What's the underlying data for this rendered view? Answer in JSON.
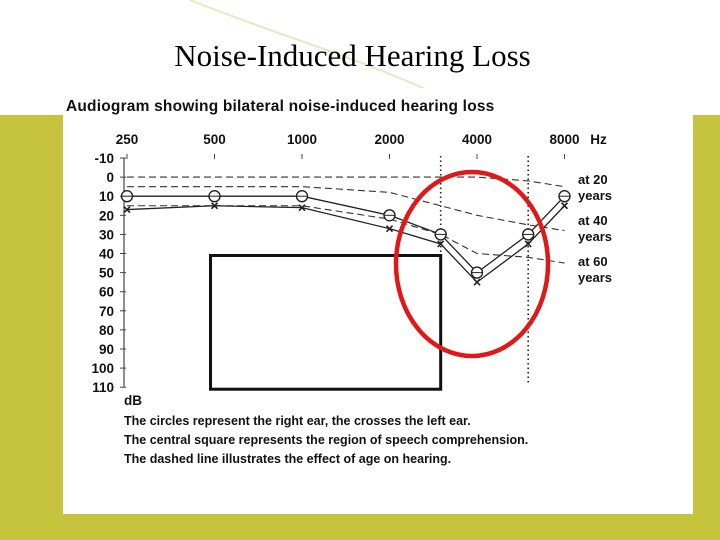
{
  "slide": {
    "title": "Noise-Induced Hearing Loss",
    "band_color": "#c6c33c"
  },
  "chart_data": {
    "type": "line",
    "title": "Audiogram showing bilateral noise-induced hearing loss",
    "x_unit": "Hz",
    "y_unit": "dB",
    "x_categories": [
      "250",
      "500",
      "1000",
      "2000",
      "4000",
      "8000"
    ],
    "y_ticks": [
      -10,
      0,
      10,
      20,
      30,
      40,
      50,
      60,
      70,
      80,
      90,
      100,
      110
    ],
    "y_inverted": true,
    "series": [
      {
        "marker": "circle",
        "x": [
          250,
          500,
          1000,
          2000,
          3000,
          4000,
          6000,
          8000
        ],
        "y": [
          10,
          10,
          10,
          20,
          30,
          50,
          30,
          10
        ]
      },
      {
        "marker": "cross",
        "x": [
          250,
          500,
          1000,
          2000,
          3000,
          4000,
          6000,
          8000
        ],
        "y": [
          17,
          15,
          16,
          27,
          35,
          55,
          35,
          15
        ]
      }
    ],
    "age_curves": [
      {
        "label": "at 20 years",
        "x": [
          250,
          500,
          1000,
          2000,
          3000,
          4000,
          6000,
          8000
        ],
        "y": [
          0,
          0,
          0,
          0,
          0,
          0,
          2,
          5
        ]
      },
      {
        "label": "at 40 years",
        "x": [
          250,
          500,
          1000,
          2000,
          3000,
          4000,
          6000,
          8000
        ],
        "y": [
          5,
          5,
          5,
          8,
          15,
          20,
          25,
          28
        ]
      },
      {
        "label": "at 60 years",
        "x": [
          250,
          500,
          1000,
          2000,
          3000,
          4000,
          6000,
          8000
        ],
        "y": [
          15,
          15,
          15,
          22,
          30,
          40,
          42,
          45
        ]
      }
    ],
    "speech_region": {
      "x": [
        500,
        3000
      ],
      "y": [
        40,
        110
      ]
    },
    "highlight_color": "#e01818",
    "captions": [
      "The circles represent the right ear, the  crosses the left ear.",
      "The central square represents the region of speech comprehension.",
      "The dashed line illustrates the effect of age on hearing."
    ]
  }
}
